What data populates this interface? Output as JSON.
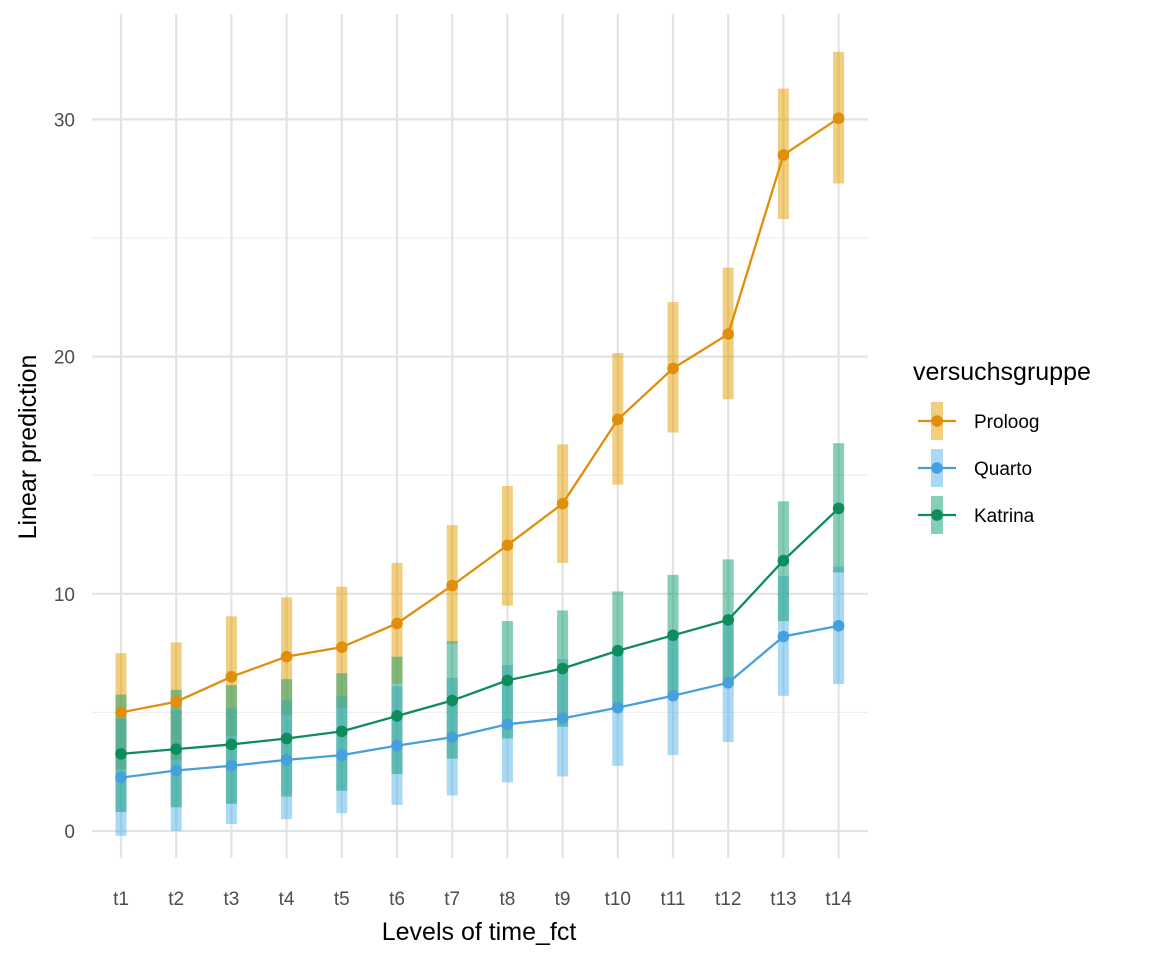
{
  "chart_data": {
    "type": "line",
    "xlabel": "Levels of time_fct",
    "ylabel": "Linear prediction",
    "categories": [
      "t1",
      "t2",
      "t3",
      "t4",
      "t5",
      "t6",
      "t7",
      "t8",
      "t9",
      "t10",
      "t11",
      "t12",
      "t13",
      "t14"
    ],
    "ylim": [
      -2,
      34
    ],
    "yticks": [
      0,
      10,
      20,
      30
    ],
    "grid": true,
    "legend": {
      "title": "versuchsgruppe",
      "position": "right",
      "entries": [
        "Proloog",
        "Quarto",
        "Katrina"
      ]
    },
    "series": [
      {
        "name": "Proloog",
        "color": "#E08F0C",
        "band_color": "#E69F00",
        "values": [
          5.0,
          5.45,
          6.5,
          7.35,
          7.75,
          8.75,
          10.35,
          12.05,
          13.8,
          17.35,
          19.5,
          20.95,
          28.5,
          30.05
        ],
        "lower": [
          2.6,
          3.0,
          4.0,
          4.9,
          5.2,
          6.2,
          7.9,
          9.5,
          11.3,
          14.6,
          16.8,
          18.2,
          25.8,
          27.3
        ],
        "upper": [
          7.5,
          7.95,
          9.05,
          9.85,
          10.3,
          11.3,
          12.9,
          14.55,
          16.3,
          20.15,
          22.3,
          23.75,
          31.3,
          32.85
        ]
      },
      {
        "name": "Quarto",
        "color": "#45A0DB",
        "band_color": "#56B4E9",
        "values": [
          2.25,
          2.55,
          2.75,
          3.0,
          3.2,
          3.6,
          3.95,
          4.5,
          4.75,
          5.2,
          5.7,
          6.25,
          8.2,
          8.65
        ],
        "lower": [
          -0.2,
          0.0,
          0.3,
          0.5,
          0.75,
          1.1,
          1.5,
          2.05,
          2.3,
          2.75,
          3.2,
          3.75,
          5.7,
          6.2
        ],
        "upper": [
          4.75,
          5.1,
          5.2,
          5.5,
          5.7,
          6.1,
          6.45,
          7.0,
          7.25,
          7.65,
          8.15,
          8.75,
          10.75,
          11.15
        ]
      },
      {
        "name": "Katrina",
        "color": "#0E8C5B",
        "band_color": "#109E73",
        "values": [
          3.25,
          3.45,
          3.65,
          3.9,
          4.2,
          4.85,
          5.5,
          6.35,
          6.85,
          7.6,
          8.25,
          8.9,
          11.4,
          13.6
        ],
        "lower": [
          0.8,
          1.0,
          1.15,
          1.45,
          1.7,
          2.4,
          3.05,
          3.9,
          4.4,
          5.1,
          5.7,
          6.35,
          8.85,
          10.9
        ],
        "upper": [
          5.75,
          5.95,
          6.15,
          6.4,
          6.65,
          7.35,
          8.0,
          8.85,
          9.3,
          10.1,
          10.8,
          11.45,
          13.9,
          16.35
        ]
      }
    ]
  }
}
